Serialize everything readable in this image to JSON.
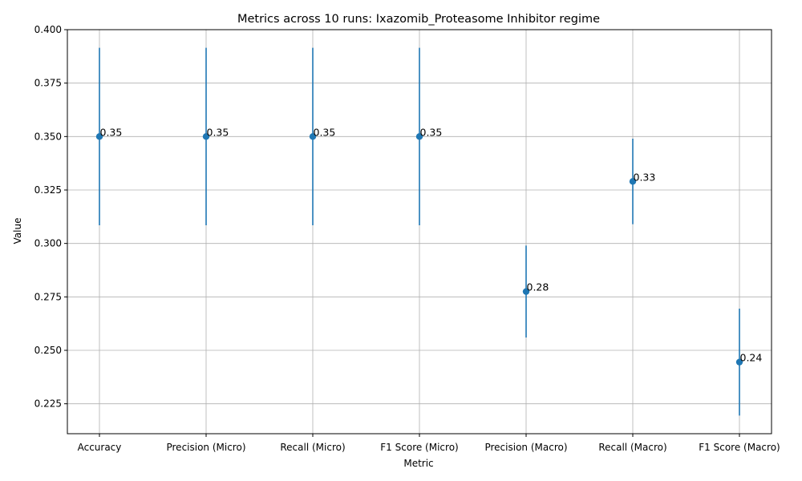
{
  "chart_data": {
    "type": "scatter",
    "title": "Metrics across 10 runs: Ixazomib_Proteasome Inhibitor regime",
    "xlabel": "Metric",
    "ylabel": "Value",
    "categories": [
      "Accuracy",
      "Precision (Micro)",
      "Recall (Micro)",
      "F1 Score (Micro)",
      "Precision (Macro)",
      "Recall (Macro)",
      "F1 Score (Macro)"
    ],
    "values": [
      0.35,
      0.35,
      0.35,
      0.35,
      0.2775,
      0.329,
      0.2445
    ],
    "error": [
      0.0415,
      0.0415,
      0.0415,
      0.0415,
      0.0215,
      0.02,
      0.025
    ],
    "point_labels": [
      "0.35",
      "0.35",
      "0.35",
      "0.35",
      "0.28",
      "0.33",
      "0.24"
    ],
    "ylim": [
      0.211,
      0.4
    ],
    "yticks": [
      0.225,
      0.25,
      0.275,
      0.3,
      0.325,
      0.35,
      0.375,
      0.4
    ],
    "ytick_labels": [
      "0.225",
      "0.250",
      "0.275",
      "0.300",
      "0.325",
      "0.350",
      "0.375",
      "0.400"
    ],
    "grid": true,
    "color": "#1f77b4"
  }
}
